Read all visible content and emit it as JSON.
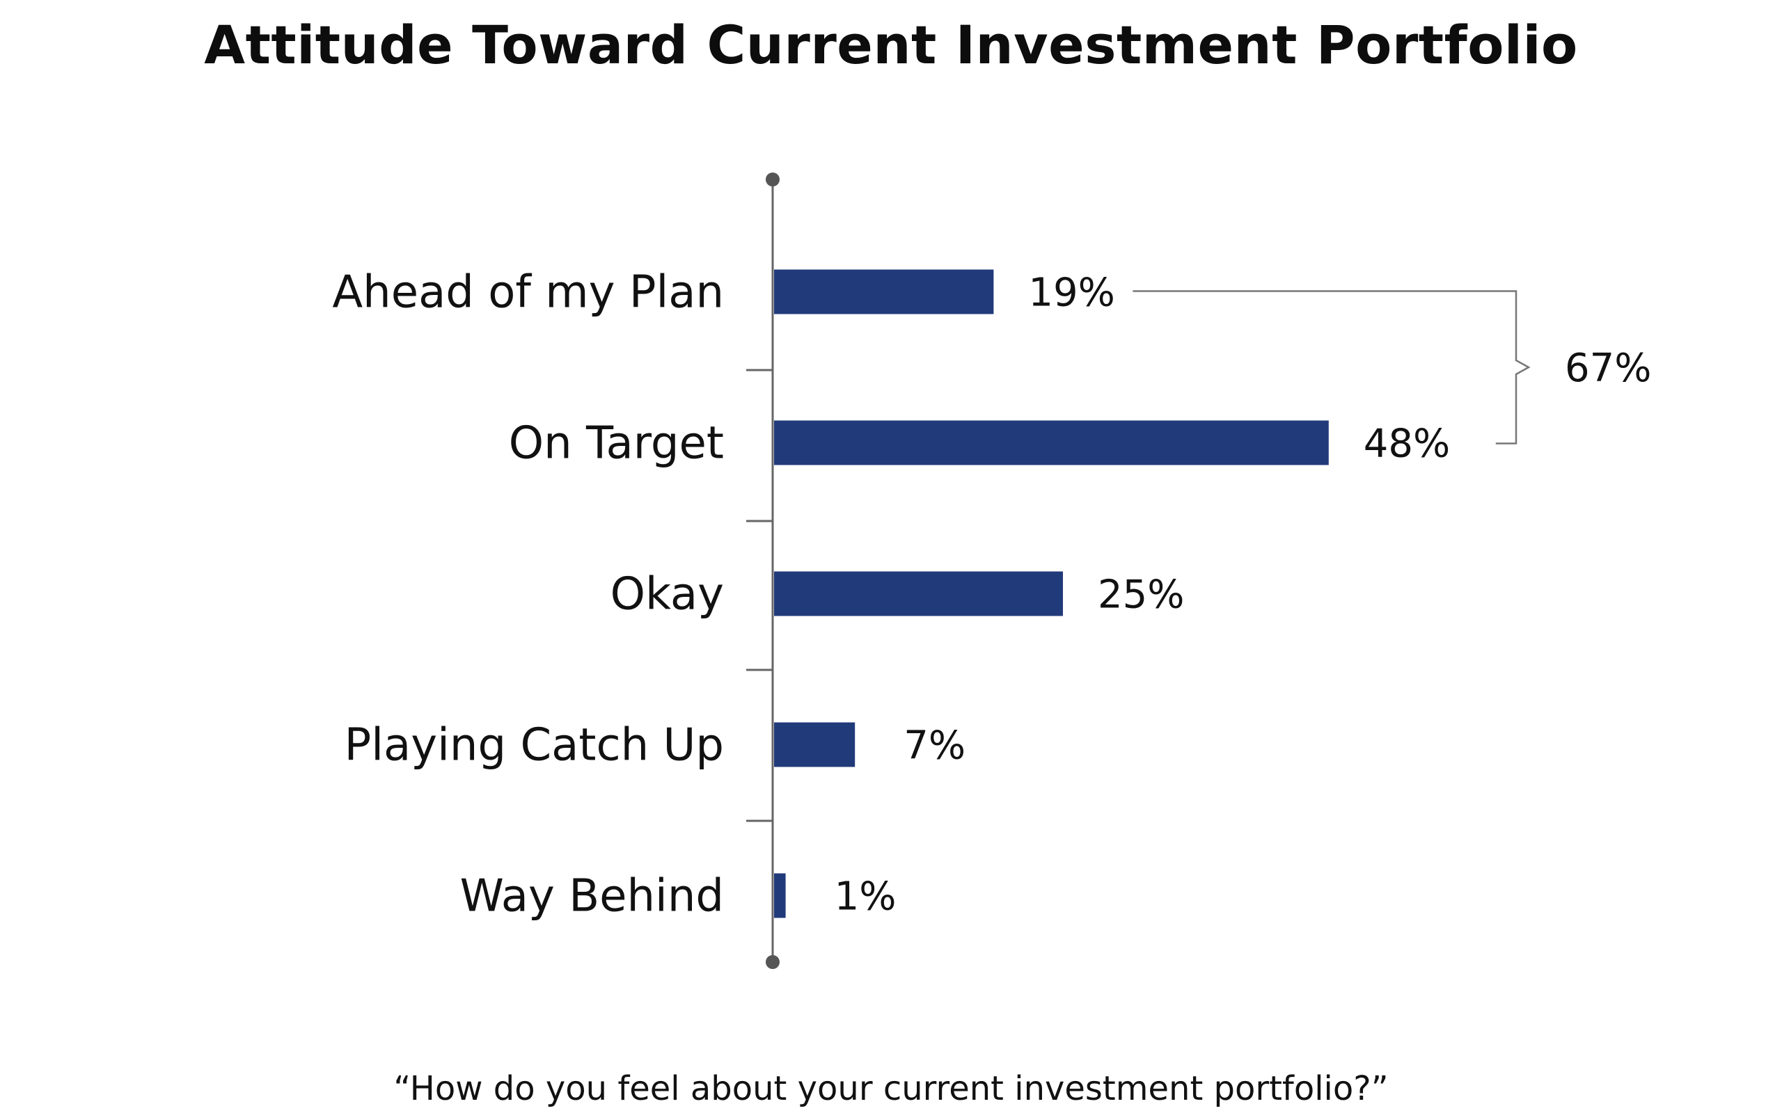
{
  "chart_data": {
    "type": "bar",
    "orientation": "horizontal",
    "title": "Attitude Toward Current Investment Portfolio",
    "categories": [
      "Ahead of my Plan",
      "On Target",
      "Okay",
      "Playing Catch Up",
      "Way Behind"
    ],
    "values": [
      19,
      48,
      25,
      7,
      1
    ],
    "value_labels": [
      "19%",
      "48%",
      "25%",
      "7%",
      "1%"
    ],
    "unit": "%",
    "xlim": [
      0,
      50
    ],
    "grid": false,
    "legend": "none",
    "bar_color": "#213a7a",
    "axis_color": "#666666",
    "annotation": {
      "label": "67%",
      "spans": [
        "Ahead of my Plan",
        "On Target"
      ],
      "value": 67
    },
    "caption": "“How do you feel about your current investment portfolio?”"
  }
}
